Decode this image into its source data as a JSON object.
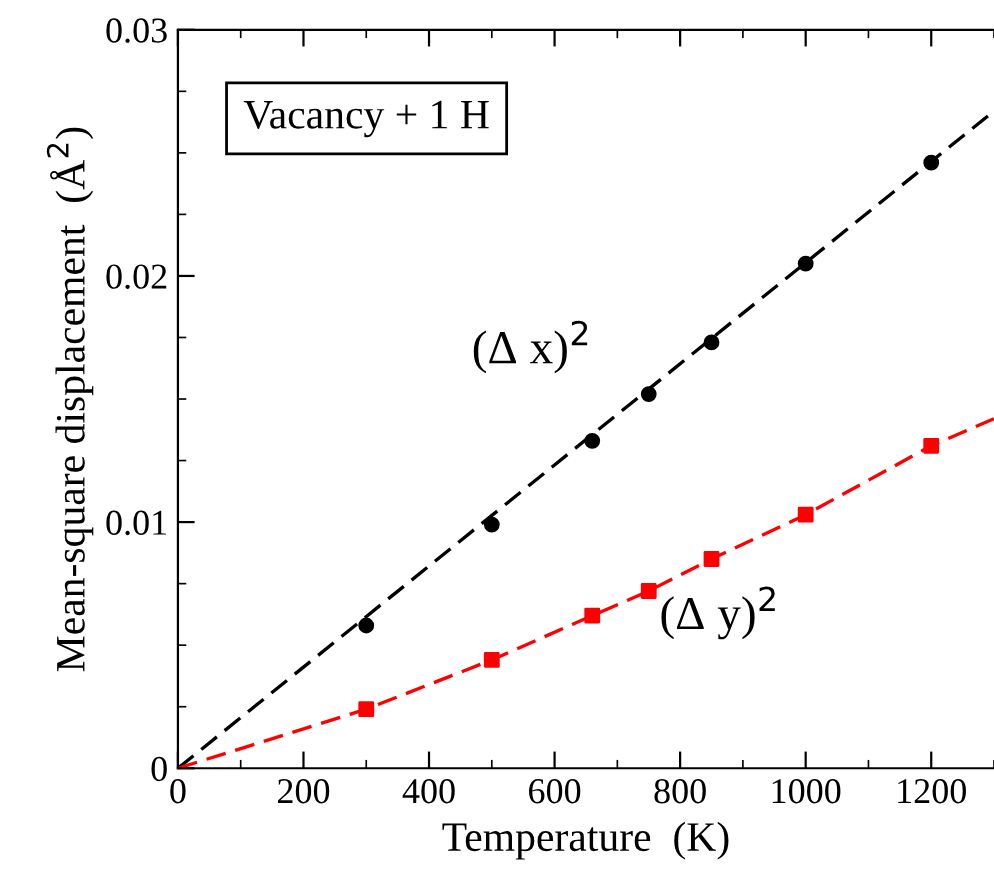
{
  "chart_data": {
    "type": "scatter",
    "xlabel": "Temperature  (K)",
    "ylabel": "Mean-square displacement  (Å$^{2}$)",
    "xlim": [
      0,
      1300
    ],
    "xticks": [
      0,
      200,
      400,
      600,
      800,
      1000,
      1200
    ],
    "ylim": [
      0,
      0.03
    ],
    "yticks": [
      0,
      0.01,
      0.02,
      0.03
    ],
    "grid": false,
    "legend": false,
    "series": [
      {
        "type": "line",
        "color": "#000000",
        "line_style": "dashed",
        "marker": "none",
        "x": [
          0,
          1300
        ],
        "values": [
          0,
          0.0267
        ]
      },
      {
        "type": "line",
        "color": "#ff0000",
        "line_style": "dashed",
        "marker": "none",
        "x": [
          0,
          300,
          500,
          660,
          750,
          850,
          1000,
          1200,
          1300
        ],
        "values": [
          0,
          0.0024,
          0.0044,
          0.0062,
          0.0072,
          0.0085,
          0.0103,
          0.0131,
          0.0142
        ]
      },
      {
        "color": "#000000",
        "marker": "circle",
        "x": [
          300,
          500,
          660,
          750,
          850,
          1000,
          1200
        ],
        "values": [
          0.0058,
          0.0099,
          0.0133,
          0.0152,
          0.0173,
          0.0205,
          0.0246
        ]
      },
      {
        "color": "#ff0000",
        "marker": "square",
        "x": [
          300,
          500,
          660,
          750,
          850,
          1000,
          1200
        ],
        "values": [
          0.0024,
          0.0044,
          0.0062,
          0.0072,
          0.0085,
          0.0103,
          0.0131
        ]
      }
    ],
    "annotations": [
      "Vacancy + 1 H",
      "(Δ x)$^{2}$",
      "(Δ y)$^{2}$"
    ]
  }
}
